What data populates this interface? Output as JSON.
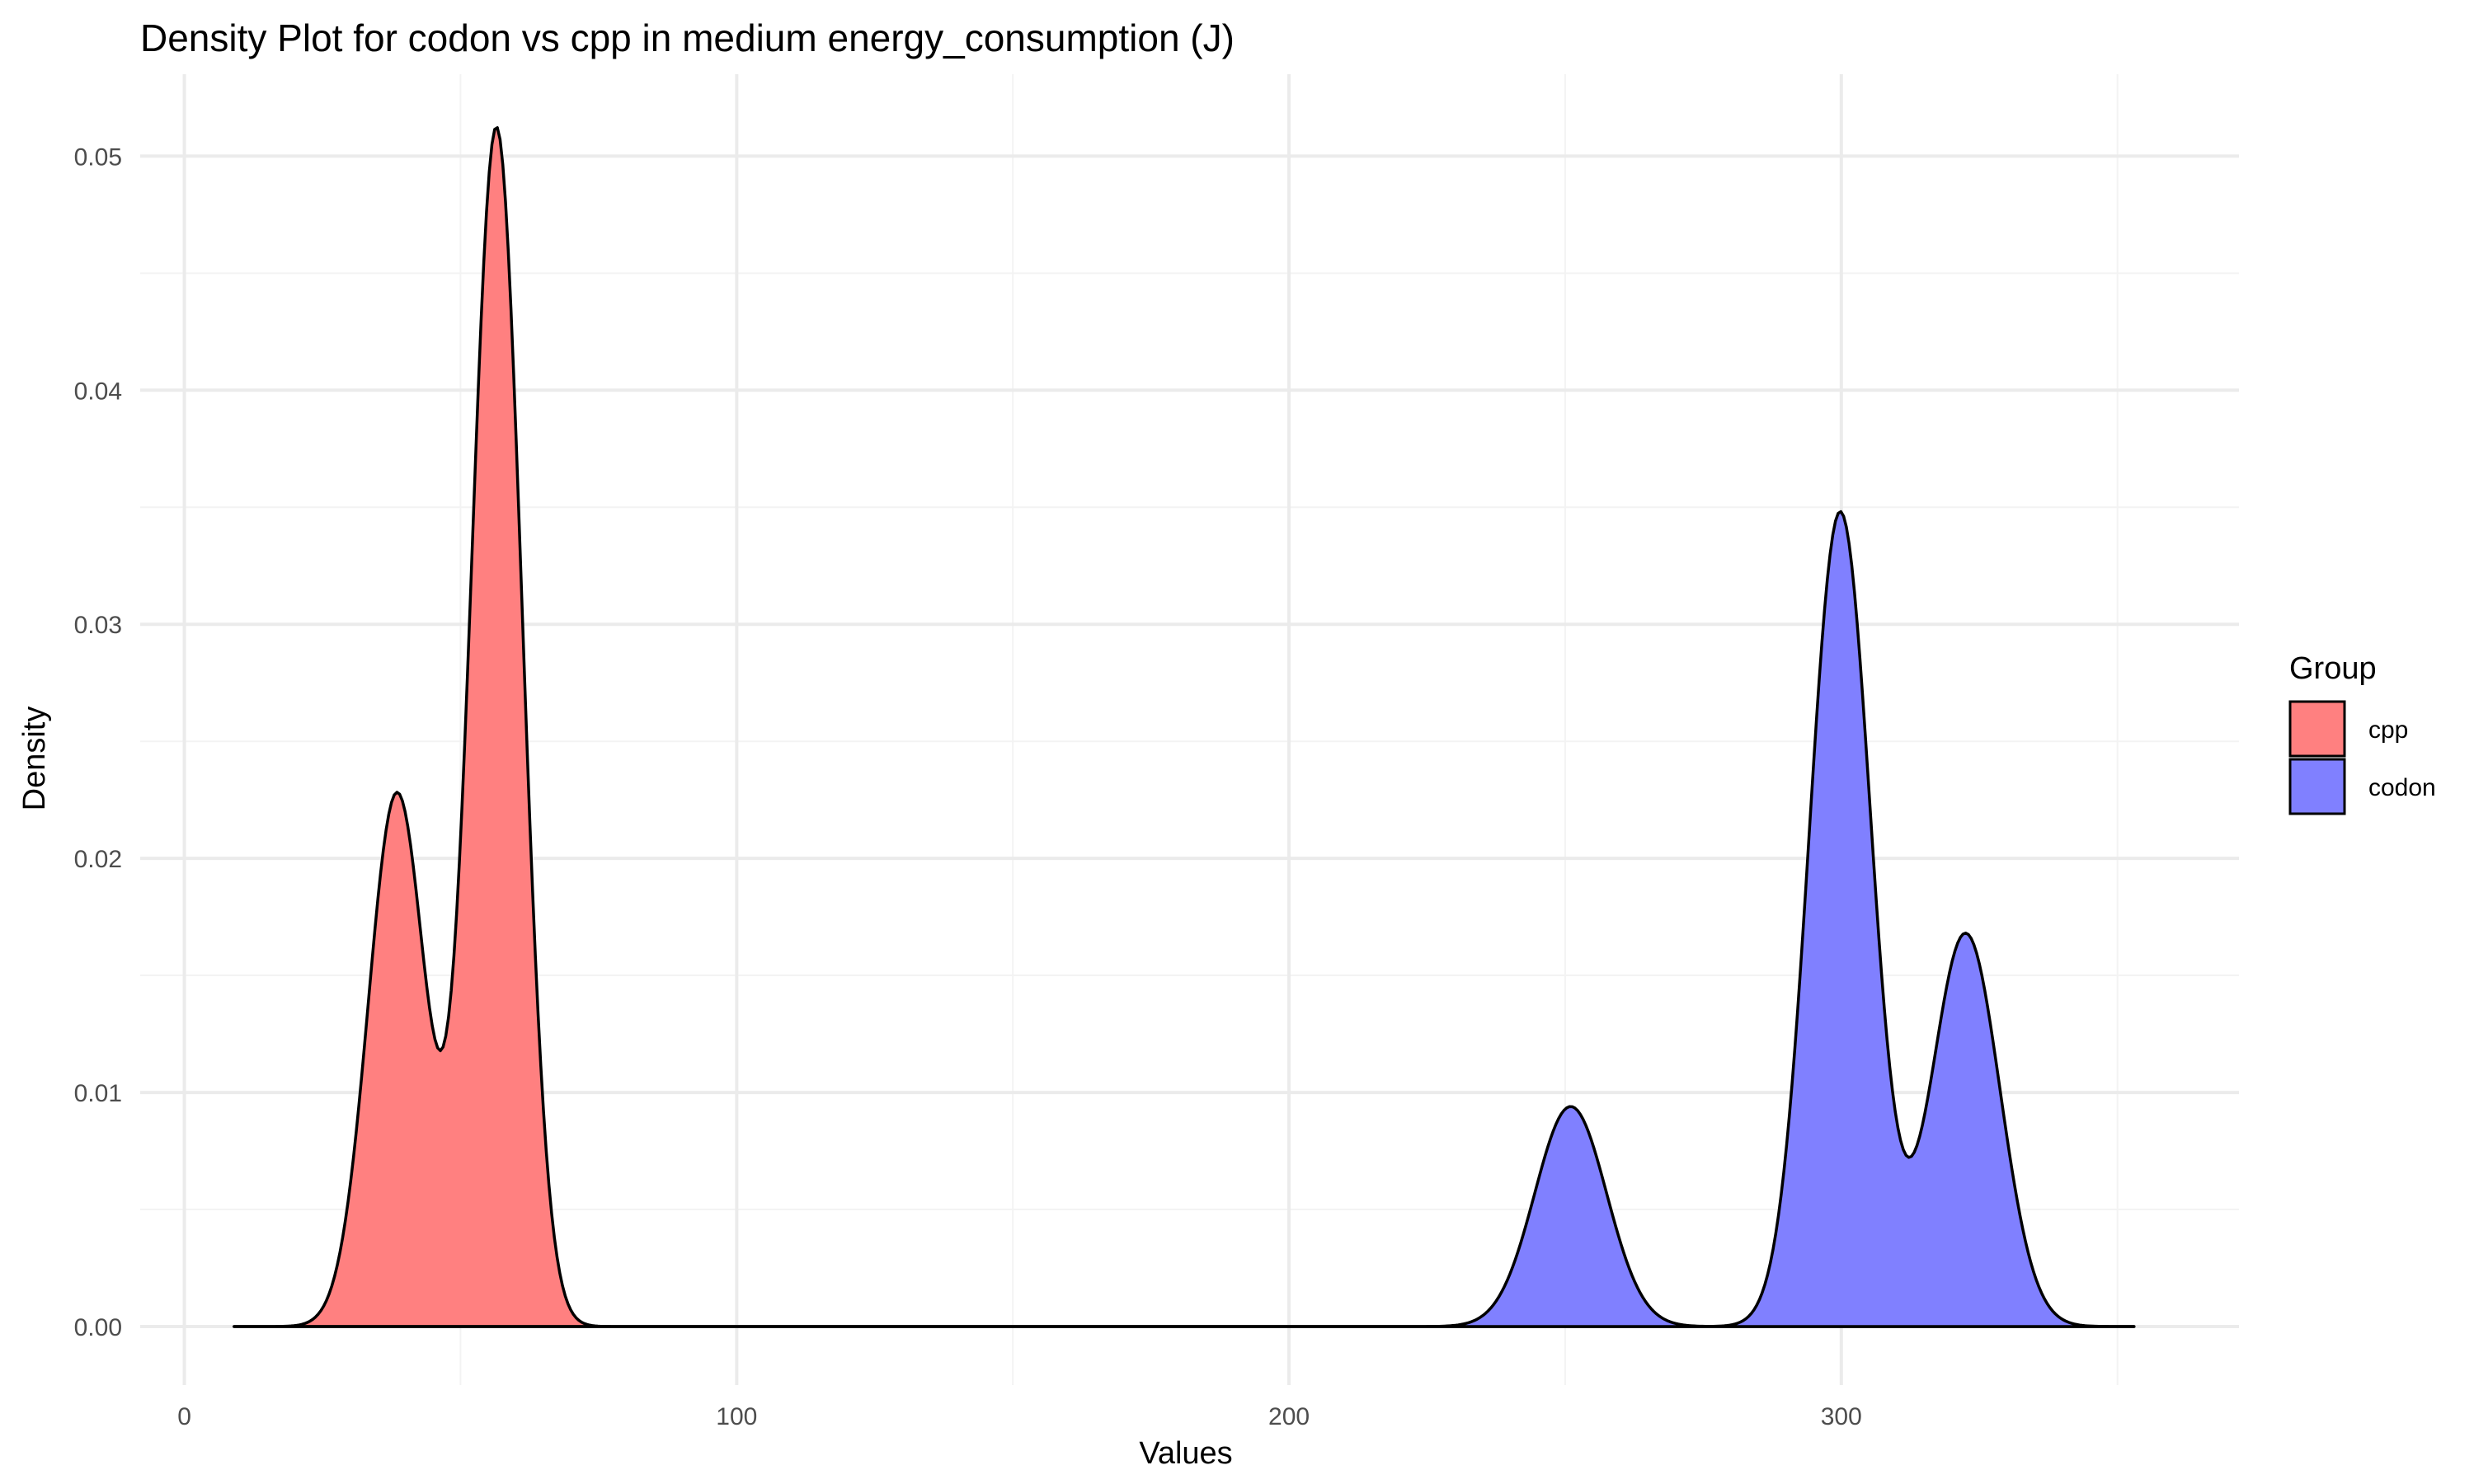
{
  "chart_data": {
    "type": "area",
    "title": "Density Plot for codon vs cpp in medium energy_consumption (J)",
    "xlabel": "Values",
    "ylabel": "Density",
    "xlim": [
      -8,
      372
    ],
    "ylim": [
      -0.0025,
      0.0535
    ],
    "x_ticks": [
      0,
      100,
      200,
      300
    ],
    "x_tick_labels": [
      "0",
      "100",
      "200",
      "300"
    ],
    "y_ticks": [
      0.0,
      0.01,
      0.02,
      0.03,
      0.04,
      0.05
    ],
    "y_tick_labels": [
      "0.00",
      "0.01",
      "0.02",
      "0.03",
      "0.04",
      "0.05"
    ],
    "grid": true,
    "legend": {
      "title": "Group",
      "position": "right",
      "entries": [
        "cpp",
        "codon"
      ]
    },
    "x_range": [
      9,
      353
    ],
    "series": [
      {
        "name": "cpp",
        "color": "#ff8080",
        "peaks": [
          {
            "x": 38.5,
            "y": 0.0228,
            "sd": 5.2
          },
          {
            "x": 56.5,
            "y": 0.0512,
            "sd": 4.6
          }
        ]
      },
      {
        "name": "codon",
        "color": "#8080ff",
        "peaks": [
          {
            "x": 251,
            "y": 0.0094,
            "sd": 6.5
          },
          {
            "x": 299.8,
            "y": 0.0348,
            "sd": 5.6
          },
          {
            "x": 322.5,
            "y": 0.0168,
            "sd": 6.2
          }
        ]
      }
    ]
  }
}
